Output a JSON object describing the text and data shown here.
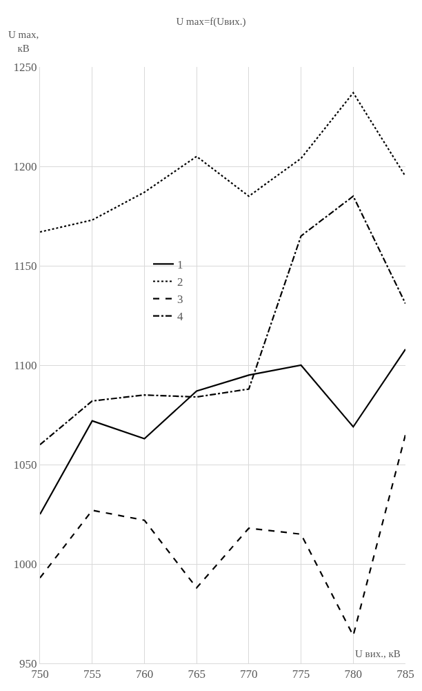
{
  "chart_data": {
    "type": "line",
    "title": "U max=f(Uвих.)",
    "ylabel": "U max,\nкВ",
    "xlabel": "U вих., кВ",
    "x": [
      750,
      755,
      760,
      765,
      770,
      775,
      780,
      785
    ],
    "series": [
      {
        "name": "1",
        "color": "#000000",
        "line_style": "solid",
        "values": [
          1025,
          1072,
          1063,
          1087,
          1095,
          1100,
          1069,
          1108
        ]
      },
      {
        "name": "2",
        "color": "#000000",
        "line_style": "dotted",
        "values": [
          1167,
          1173,
          1187,
          1205,
          1185,
          1204,
          1237,
          1195
        ]
      },
      {
        "name": "3",
        "color": "#000000",
        "line_style": "dashed",
        "values": [
          993,
          1027,
          1022,
          988,
          1018,
          1015,
          964,
          1065
        ]
      },
      {
        "name": "4",
        "color": "#000000",
        "line_style": "dashdot",
        "values": [
          1060,
          1082,
          1085,
          1084,
          1088,
          1165,
          1185,
          1131
        ]
      }
    ],
    "xlim": [
      750,
      785
    ],
    "xticks": [
      750,
      755,
      760,
      765,
      770,
      775,
      780,
      785
    ],
    "ylim": [
      950,
      1250
    ],
    "yticks": [
      950,
      1000,
      1050,
      1100,
      1150,
      1200,
      1250
    ],
    "grid": true,
    "legend": "left",
    "marker": "none"
  }
}
